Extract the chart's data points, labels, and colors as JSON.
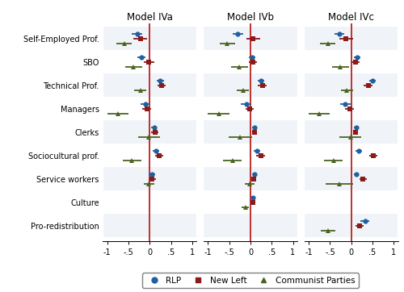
{
  "models": [
    "Model IVa",
    "Model IVb",
    "Model IVc"
  ],
  "categories": [
    "Self-Employed Prof.",
    "SBO",
    "Technical Prof.",
    "Managers",
    "Clerks",
    "Sociocultural prof.",
    "Service workers",
    "Culture",
    "Pro-redistribution"
  ],
  "rlp_color": "#2060a0",
  "new_left_color": "#8b1a1a",
  "communist_color": "#4a6320",
  "vline_color": "#c03030",
  "data": {
    "Model IVa": {
      "RLP": {
        "means": [
          -0.3,
          -0.2,
          0.25,
          -0.1,
          0.1,
          0.15,
          0.05,
          null,
          null
        ],
        "ci_lo": [
          -0.42,
          -0.3,
          0.17,
          -0.22,
          0.04,
          0.08,
          -0.02,
          null,
          null
        ],
        "ci_hi": [
          -0.18,
          -0.1,
          0.33,
          0.02,
          0.16,
          0.22,
          0.12,
          null,
          null
        ]
      },
      "New Left": {
        "means": [
          -0.22,
          -0.02,
          0.28,
          -0.07,
          0.12,
          0.22,
          0.06,
          null,
          null
        ],
        "ci_lo": [
          -0.38,
          -0.14,
          0.18,
          -0.17,
          0.04,
          0.12,
          -0.02,
          null,
          null
        ],
        "ci_hi": [
          -0.06,
          0.1,
          0.38,
          0.03,
          0.2,
          0.32,
          0.14,
          null,
          null
        ]
      },
      "Communist": {
        "means": [
          -0.6,
          -0.38,
          -0.22,
          -0.75,
          -0.02,
          -0.42,
          -0.02,
          null,
          null
        ],
        "ci_lo": [
          -0.78,
          -0.58,
          -0.36,
          -1.0,
          -0.28,
          -0.64,
          -0.14,
          null,
          null
        ],
        "ci_hi": [
          -0.42,
          -0.18,
          -0.08,
          -0.5,
          0.24,
          -0.2,
          0.1,
          null,
          null
        ]
      }
    },
    "Model IVb": {
      "RLP": {
        "means": [
          -0.3,
          0.04,
          0.25,
          -0.1,
          0.1,
          0.15,
          0.1,
          0.06,
          null
        ],
        "ci_lo": [
          -0.42,
          -0.04,
          0.17,
          -0.22,
          0.04,
          0.08,
          0.04,
          0.01,
          null
        ],
        "ci_hi": [
          -0.18,
          0.12,
          0.33,
          0.02,
          0.16,
          0.22,
          0.16,
          0.11,
          null
        ]
      },
      "New Left": {
        "means": [
          0.06,
          0.06,
          0.28,
          -0.02,
          0.1,
          0.24,
          0.08,
          0.05,
          null
        ],
        "ci_lo": [
          -0.1,
          -0.04,
          0.18,
          -0.12,
          0.04,
          0.14,
          0.02,
          0.01,
          null
        ],
        "ci_hi": [
          0.22,
          0.16,
          0.38,
          0.08,
          0.16,
          0.34,
          0.14,
          0.09,
          null
        ]
      },
      "Communist": {
        "means": [
          -0.55,
          -0.26,
          -0.18,
          -0.75,
          -0.24,
          -0.42,
          -0.02,
          -0.12,
          null
        ],
        "ci_lo": [
          -0.73,
          -0.46,
          -0.32,
          -1.0,
          -0.52,
          -0.64,
          -0.14,
          -0.2,
          null
        ],
        "ci_hi": [
          -0.37,
          -0.06,
          -0.04,
          -0.5,
          0.04,
          -0.2,
          0.1,
          -0.04,
          null
        ]
      }
    },
    "Model IVc": {
      "RLP": {
        "means": [
          -0.28,
          0.14,
          0.5,
          -0.14,
          0.12,
          0.18,
          0.12,
          null,
          0.32
        ],
        "ci_lo": [
          -0.4,
          0.06,
          0.42,
          -0.26,
          0.06,
          0.1,
          0.06,
          null,
          0.22
        ],
        "ci_hi": [
          -0.16,
          0.22,
          0.58,
          -0.02,
          0.18,
          0.26,
          0.18,
          null,
          0.42
        ]
      },
      "New Left": {
        "means": [
          -0.12,
          0.1,
          0.4,
          -0.04,
          0.1,
          0.52,
          0.28,
          null,
          0.2
        ],
        "ci_lo": [
          -0.28,
          0.0,
          0.3,
          -0.14,
          0.04,
          0.42,
          0.2,
          null,
          0.1
        ],
        "ci_hi": [
          0.04,
          0.2,
          0.5,
          0.06,
          0.16,
          0.62,
          0.36,
          null,
          0.3
        ]
      },
      "Communist": {
        "means": [
          -0.55,
          -0.26,
          -0.1,
          -0.75,
          -0.02,
          -0.42,
          -0.28,
          null,
          -0.55
        ],
        "ci_lo": [
          -0.73,
          -0.46,
          -0.24,
          -1.0,
          -0.28,
          -0.64,
          -0.6,
          null,
          -0.72
        ],
        "ci_hi": [
          -0.37,
          -0.06,
          0.04,
          -0.5,
          0.24,
          -0.2,
          0.04,
          null,
          -0.38
        ]
      }
    }
  },
  "xlim": [
    -1.1,
    1.1
  ],
  "xticks": [
    -1.0,
    -0.5,
    0.0,
    0.5,
    1.0
  ],
  "xticklabels": [
    "-1",
    "-.5",
    "0",
    ".5",
    "1"
  ],
  "bg_colors": [
    "#f0f4f8",
    "#ffffff"
  ],
  "offsets": [
    0.2,
    0.0,
    -0.2
  ]
}
